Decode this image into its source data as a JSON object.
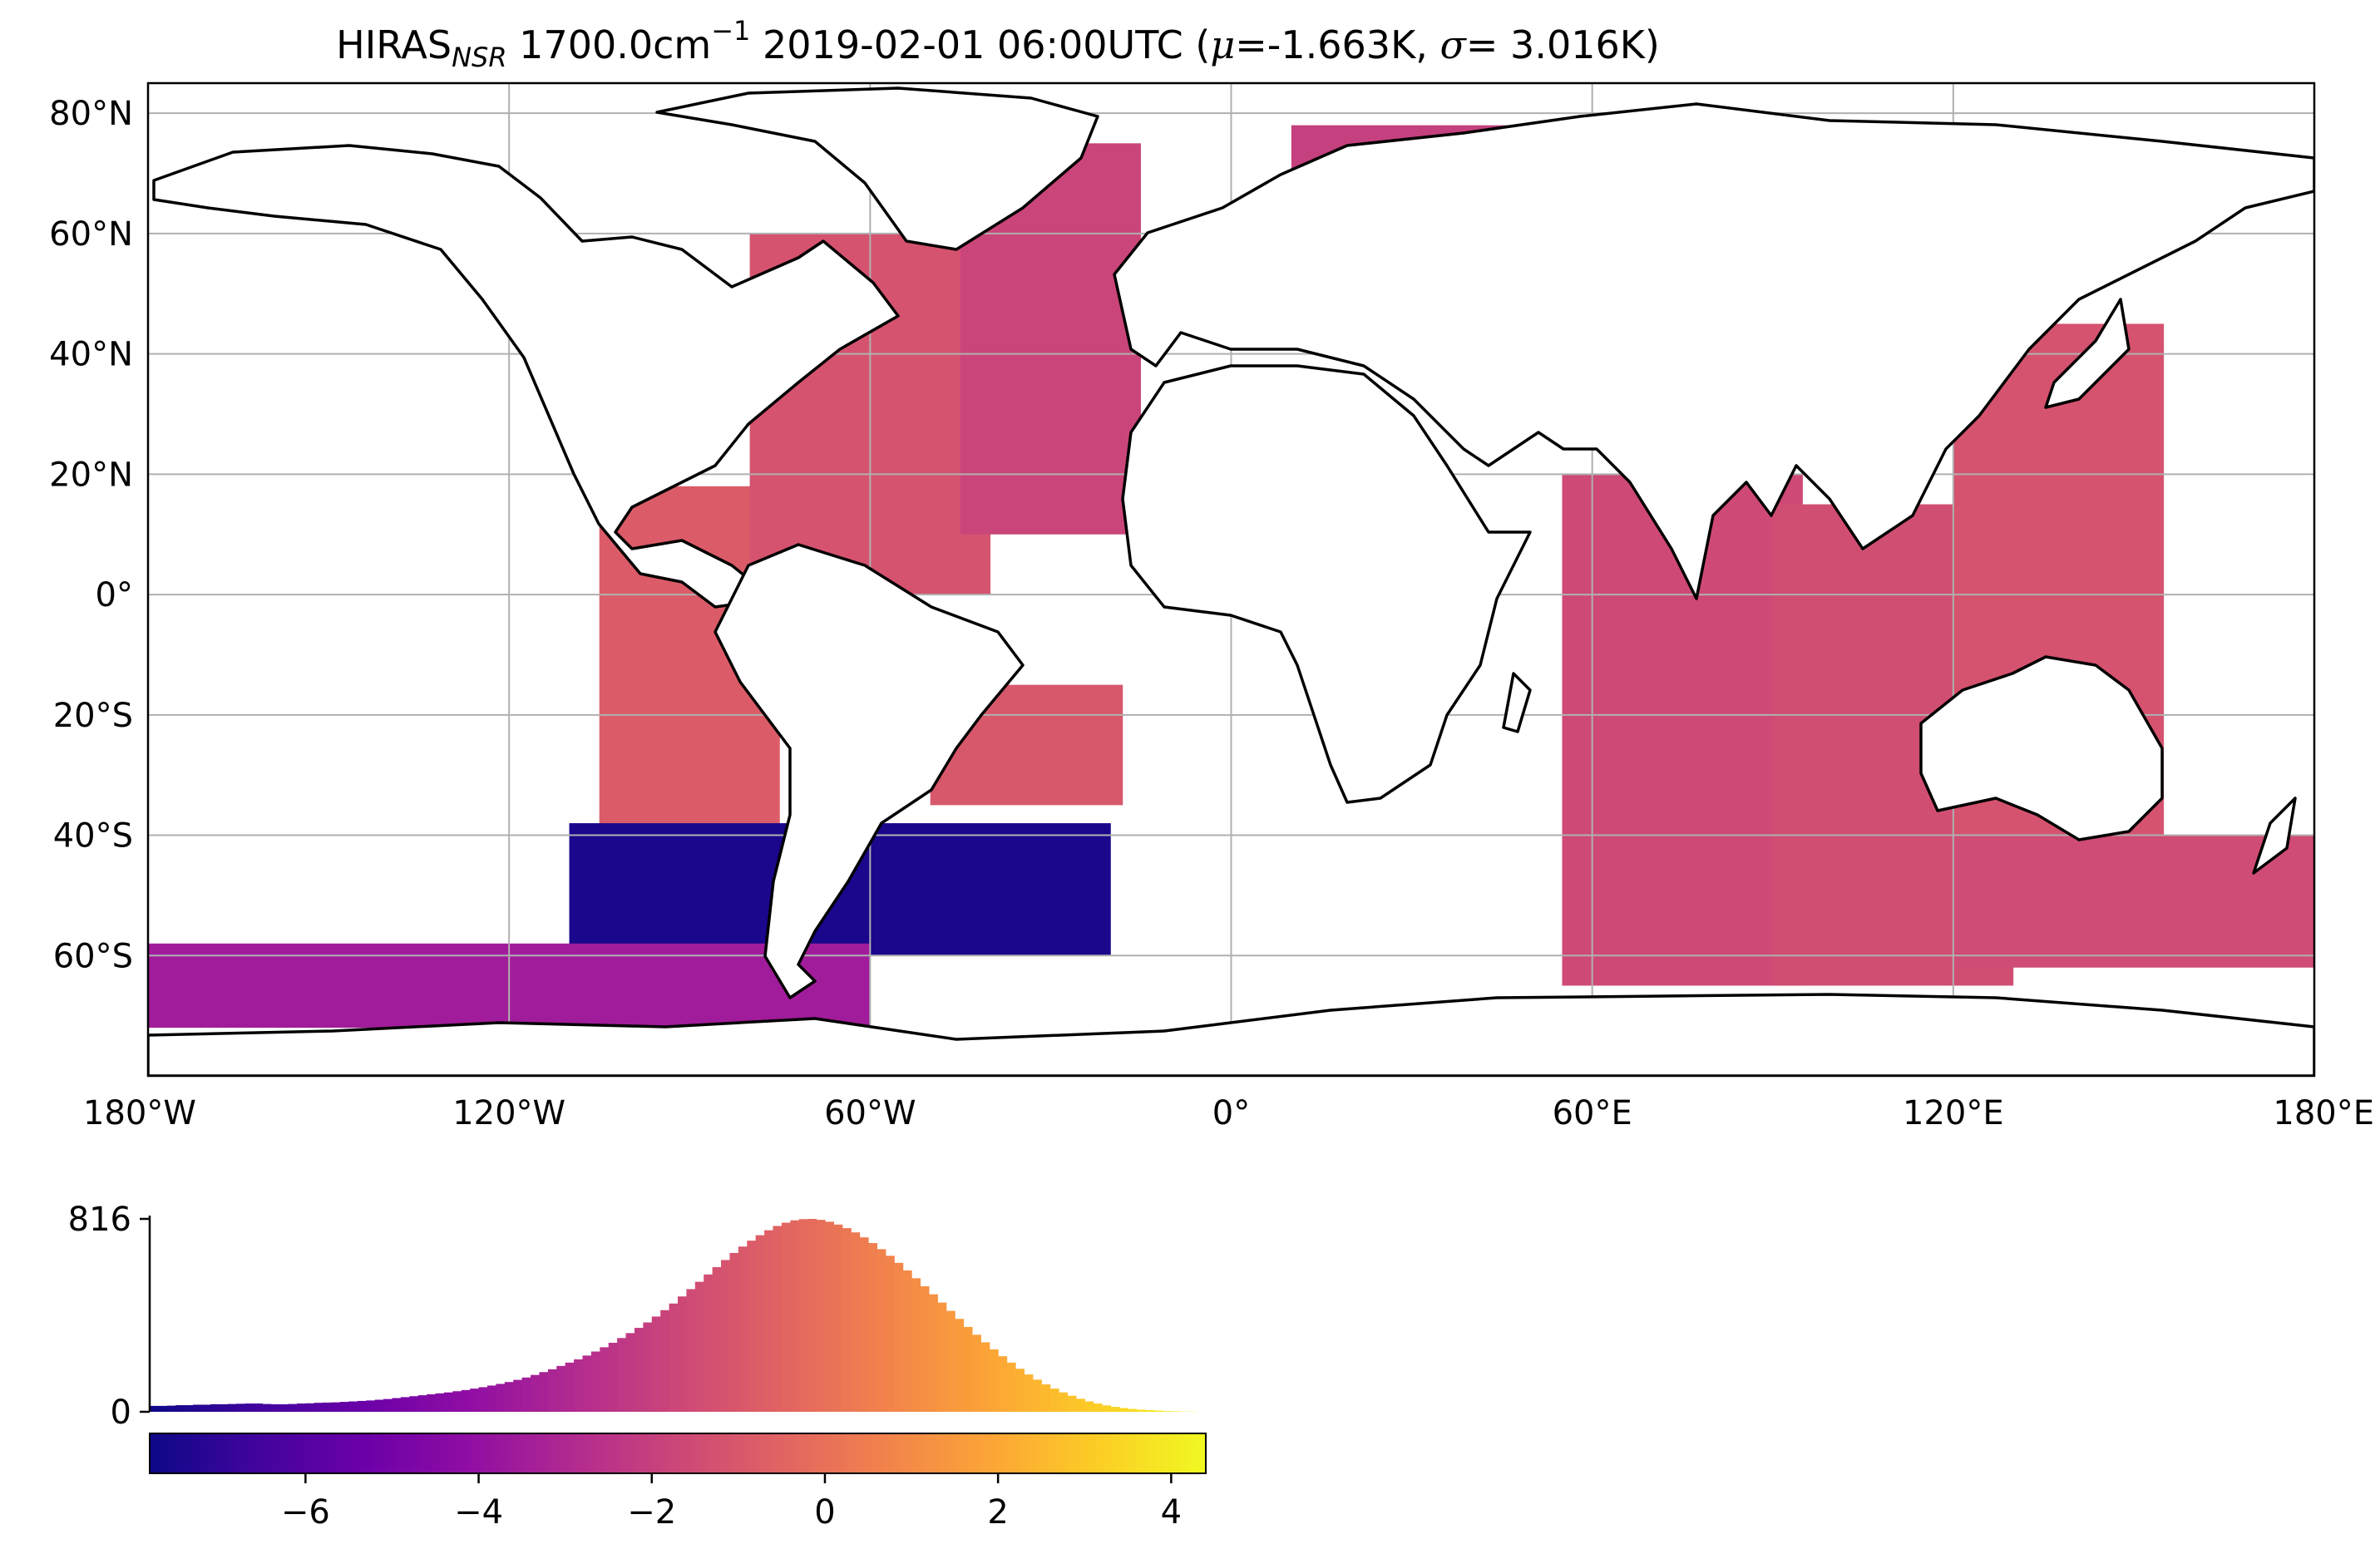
{
  "title": {
    "instrument": "HIRAS",
    "instrument_sub": "NSR",
    "wavenumber": "1700.0cm",
    "wavenumber_sup": "−1",
    "datetime": "2019-02-01 06:00UTC",
    "open_paren": "(",
    "mu_symbol": "μ",
    "mu_value": "=-1.663K,",
    "sigma_symbol": "σ",
    "sigma_value": "= 3.016K)"
  },
  "chart_data": [
    {
      "type": "scatter",
      "subtype": "geographic map, equirectangular projection",
      "xlim": [
        -180,
        180
      ],
      "ylim": [
        -80,
        85
      ],
      "x_ticks": [
        -180,
        -120,
        -60,
        0,
        60,
        120,
        180
      ],
      "x_tick_labels": [
        "180°W",
        "120°W",
        "60°W",
        "0°",
        "60°E",
        "120°E",
        "180°E"
      ],
      "y_ticks": [
        80,
        60,
        40,
        20,
        0,
        -20,
        -40,
        -60
      ],
      "y_tick_labels": [
        "80°N",
        "60°N",
        "40°N",
        "20°N",
        "0°",
        "20°S",
        "40°S",
        "60°S"
      ],
      "grid": true,
      "colormap": "plasma",
      "color_range": [
        -7.8,
        4.4
      ],
      "swaths": [
        {
          "lon": [
            -105,
            -75
          ],
          "lat": [
            -45,
            18
          ],
          "value": -0.8
        },
        {
          "lon": [
            -80,
            -40
          ],
          "lat": [
            0,
            60
          ],
          "value": -1.2
        },
        {
          "lon": [
            -45,
            -15
          ],
          "lat": [
            10,
            75
          ],
          "value": -1.8
        },
        {
          "lon": [
            -50,
            -18
          ],
          "lat": [
            -35,
            -15
          ],
          "value": -1.0
        },
        {
          "lon": [
            -110,
            -20
          ],
          "lat": [
            -60,
            -38
          ],
          "value": -7.5
        },
        {
          "lon": [
            -180,
            -60
          ],
          "lat": [
            -72,
            -58
          ],
          "value": -3.5
        },
        {
          "lon": [
            55,
            95
          ],
          "lat": [
            -65,
            20
          ],
          "value": -1.6
        },
        {
          "lon": [
            90,
            130
          ],
          "lat": [
            -65,
            15
          ],
          "value": -1.4
        },
        {
          "lon": [
            120,
            155
          ],
          "lat": [
            -40,
            45
          ],
          "value": -1.2
        },
        {
          "lon": [
            120,
            180
          ],
          "lat": [
            -62,
            -40
          ],
          "value": -1.5
        },
        {
          "lon": [
            10,
            50
          ],
          "lat": [
            68,
            78
          ],
          "value": -2.0
        }
      ]
    },
    {
      "type": "bar",
      "subtype": "histogram",
      "xlim": [
        -7.8,
        4.4
      ],
      "ylim": [
        0,
        816
      ],
      "y_ticks": [
        0,
        816
      ],
      "y_tick_labels": [
        "0",
        "816"
      ],
      "bin_start": -7.8,
      "bin_width": 0.1,
      "values": [
        25,
        25,
        26,
        28,
        28,
        30,
        30,
        32,
        32,
        33,
        34,
        35,
        35,
        33,
        32,
        32,
        33,
        35,
        36,
        38,
        39,
        40,
        42,
        44,
        46,
        48,
        51,
        54,
        58,
        62,
        66,
        70,
        74,
        78,
        82,
        87,
        92,
        98,
        104,
        111,
        118,
        126,
        135,
        145,
        156,
        168,
        180,
        194,
        208,
        222,
        238,
        255,
        273,
        292,
        312,
        333,
        355,
        378,
        403,
        430,
        458,
        488,
        519,
        550,
        581,
        612,
        642,
        672,
        699,
        724,
        747,
        768,
        786,
        800,
        810,
        815,
        816,
        812,
        804,
        792,
        777,
        759,
        738,
        714,
        688,
        660,
        630,
        598,
        565,
        531,
        497,
        462,
        427,
        393,
        359,
        326,
        294,
        264,
        235,
        208,
        182,
        158,
        136,
        116,
        98,
        82,
        68,
        55,
        44,
        35,
        27,
        21,
        16,
        12,
        9,
        7,
        5,
        3,
        2,
        1,
        1,
        0
      ]
    }
  ],
  "colorbar": {
    "ticks": [
      -6,
      -4,
      -2,
      0,
      2,
      4
    ],
    "tick_labels": [
      "−6",
      "−4",
      "−2",
      "0",
      "2",
      "4"
    ]
  }
}
